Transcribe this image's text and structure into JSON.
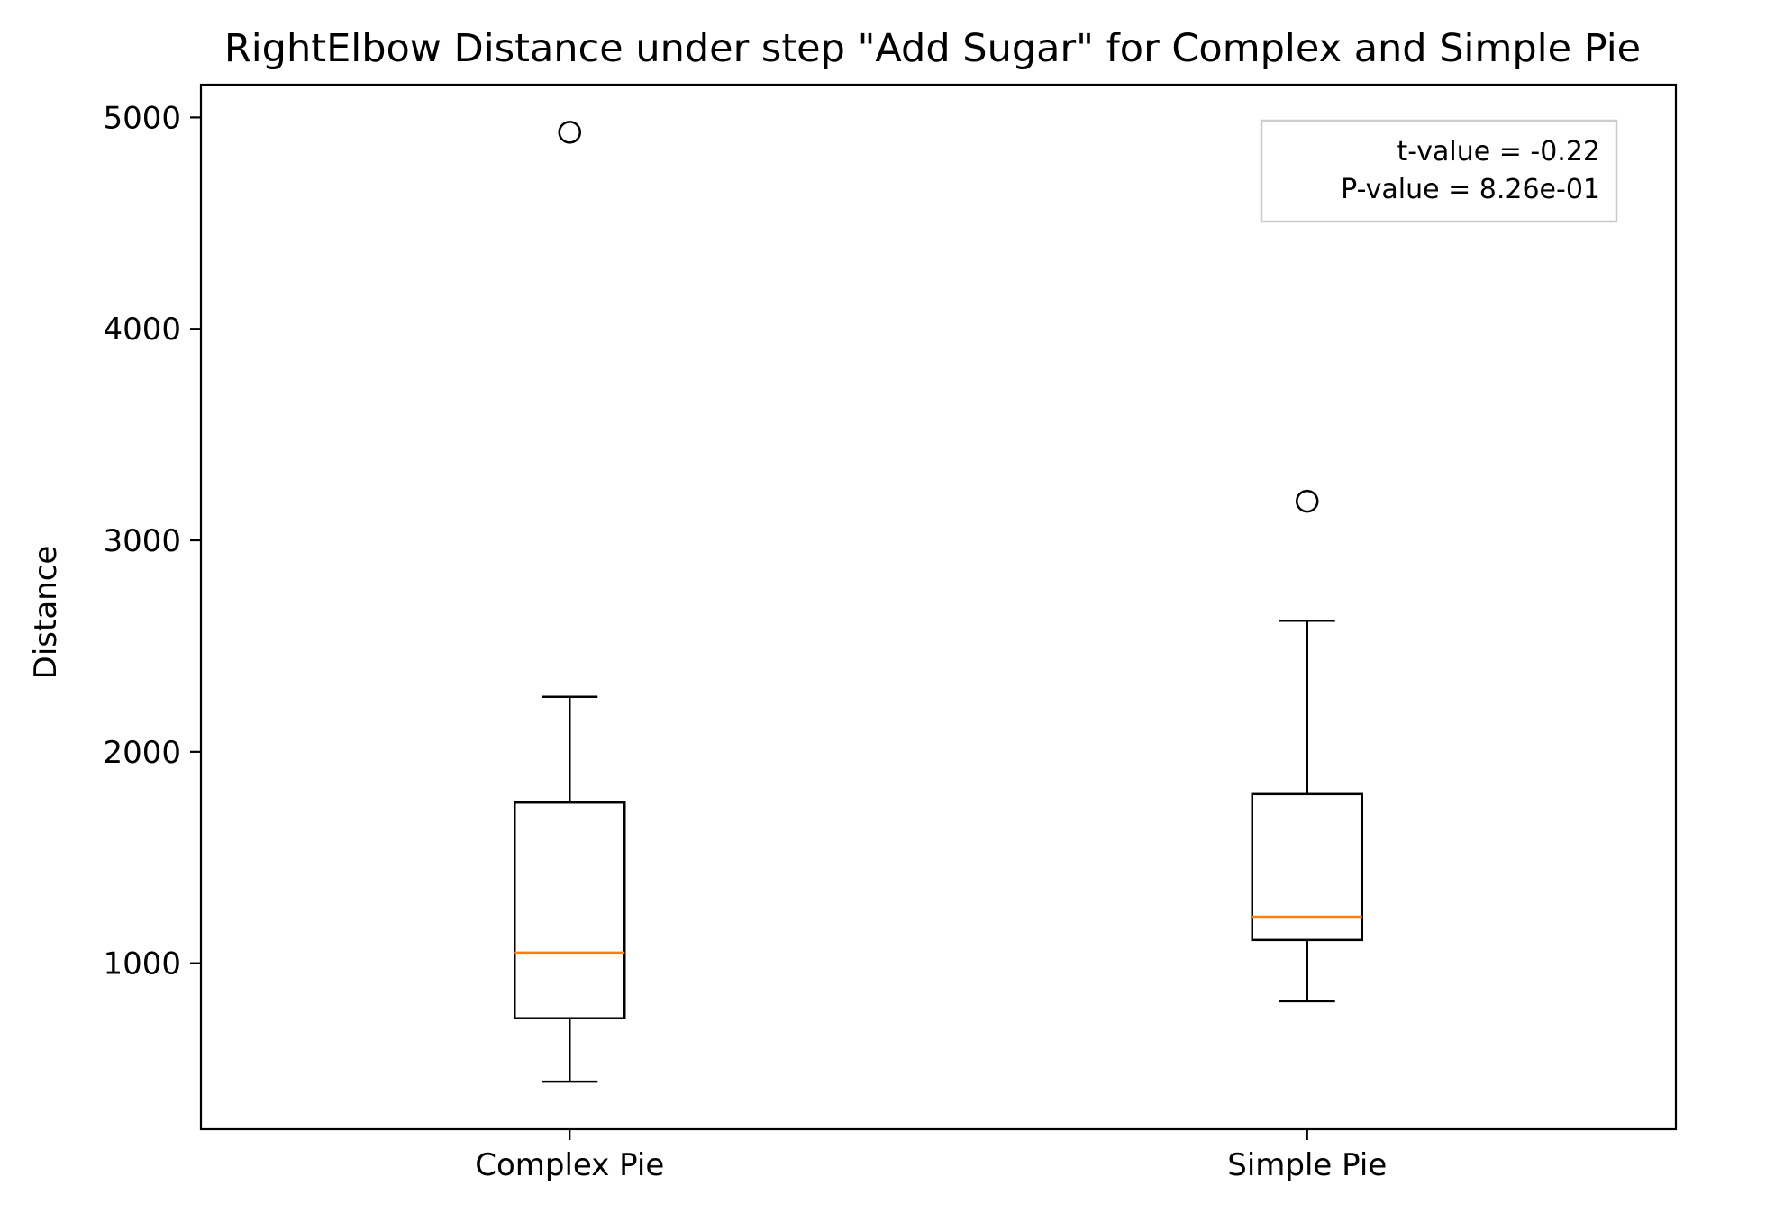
{
  "chart_data": {
    "type": "box",
    "title": "RightElbow Distance under step \"Add Sugar\" for Complex and Simple Pie",
    "xlabel": "",
    "ylabel": "Distance",
    "ylim": [
      215,
      5155
    ],
    "yticks": [
      1000,
      2000,
      3000,
      4000,
      5000
    ],
    "yticks_labels": [
      "1000",
      "2000",
      "3000",
      "4000",
      "5000"
    ],
    "categories": [
      "Complex Pie",
      "Simple Pie"
    ],
    "boxes": [
      {
        "label": "Complex Pie",
        "whisker_low": 440,
        "q1": 740,
        "median": 1050,
        "q3": 1760,
        "whisker_high": 2260,
        "outliers": [
          4930
        ]
      },
      {
        "label": "Simple Pie",
        "whisker_low": 820,
        "q1": 1110,
        "median": 1220,
        "q3": 1800,
        "whisker_high": 2620,
        "outliers": [
          3185
        ]
      }
    ],
    "annotation": {
      "lines": [
        "t-value = -0.22",
        "P-value = 8.26e-01"
      ],
      "placement": "top-right"
    },
    "grid": false,
    "colors": {
      "box": "#000000",
      "median": "#ff7f0e",
      "frame": "#000000",
      "annotation_border": "#cccccc"
    }
  }
}
